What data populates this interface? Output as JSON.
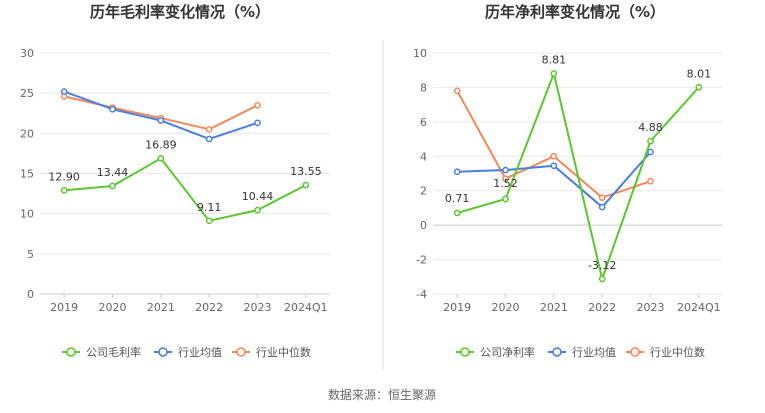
{
  "colors": {
    "company": "#5cc532",
    "industry_avg": "#4a7fdc",
    "industry_median": "#f08a5d",
    "grid": "#e8e8e8",
    "divider": "#dddddd"
  },
  "legend": {
    "company_gross": "公司毛利率",
    "company_net": "公司净利率",
    "industry_avg": "行业均值",
    "industry_median": "行业中位数"
  },
  "source": "数据来源：恒生聚源",
  "chart_data": [
    {
      "type": "line",
      "title": "历年毛利率变化情况（%）",
      "categories": [
        "2019",
        "2020",
        "2021",
        "2022",
        "2023",
        "2024Q1"
      ],
      "ylim": [
        0,
        30
      ],
      "yticks": [
        "0",
        "5",
        "10",
        "15",
        "20",
        "25",
        "30"
      ],
      "grid": true,
      "legend_position": "bottom",
      "series": [
        {
          "name": "公司毛利率",
          "values": [
            12.9,
            13.44,
            16.89,
            9.11,
            10.44,
            13.55
          ],
          "labels": [
            "12.90",
            "13.44",
            "16.89",
            "9.11",
            "10.44",
            "13.55"
          ]
        },
        {
          "name": "行业均值",
          "values": [
            25.2,
            23.0,
            21.6,
            19.3,
            21.3,
            null
          ]
        },
        {
          "name": "行业中位数",
          "values": [
            24.6,
            23.2,
            21.9,
            20.5,
            23.5,
            null
          ]
        }
      ]
    },
    {
      "type": "line",
      "title": "历年净利率变化情况（%）",
      "categories": [
        "2019",
        "2020",
        "2021",
        "2022",
        "2023",
        "2024Q1"
      ],
      "ylim": [
        -4,
        10
      ],
      "yticks": [
        "-4",
        "-2",
        "0",
        "2",
        "4",
        "6",
        "8",
        "10"
      ],
      "grid": true,
      "legend_position": "bottom",
      "series": [
        {
          "name": "公司净利率",
          "values": [
            0.71,
            1.52,
            8.81,
            -3.12,
            4.88,
            8.01
          ],
          "labels": [
            "0.71",
            "1.52",
            "8.81",
            "-3.12",
            "4.88",
            "8.01"
          ]
        },
        {
          "name": "行业均值",
          "values": [
            3.1,
            3.2,
            3.45,
            1.05,
            4.25,
            null
          ]
        },
        {
          "name": "行业中位数",
          "values": [
            7.8,
            2.7,
            4.0,
            1.6,
            2.55,
            null
          ]
        }
      ]
    }
  ]
}
